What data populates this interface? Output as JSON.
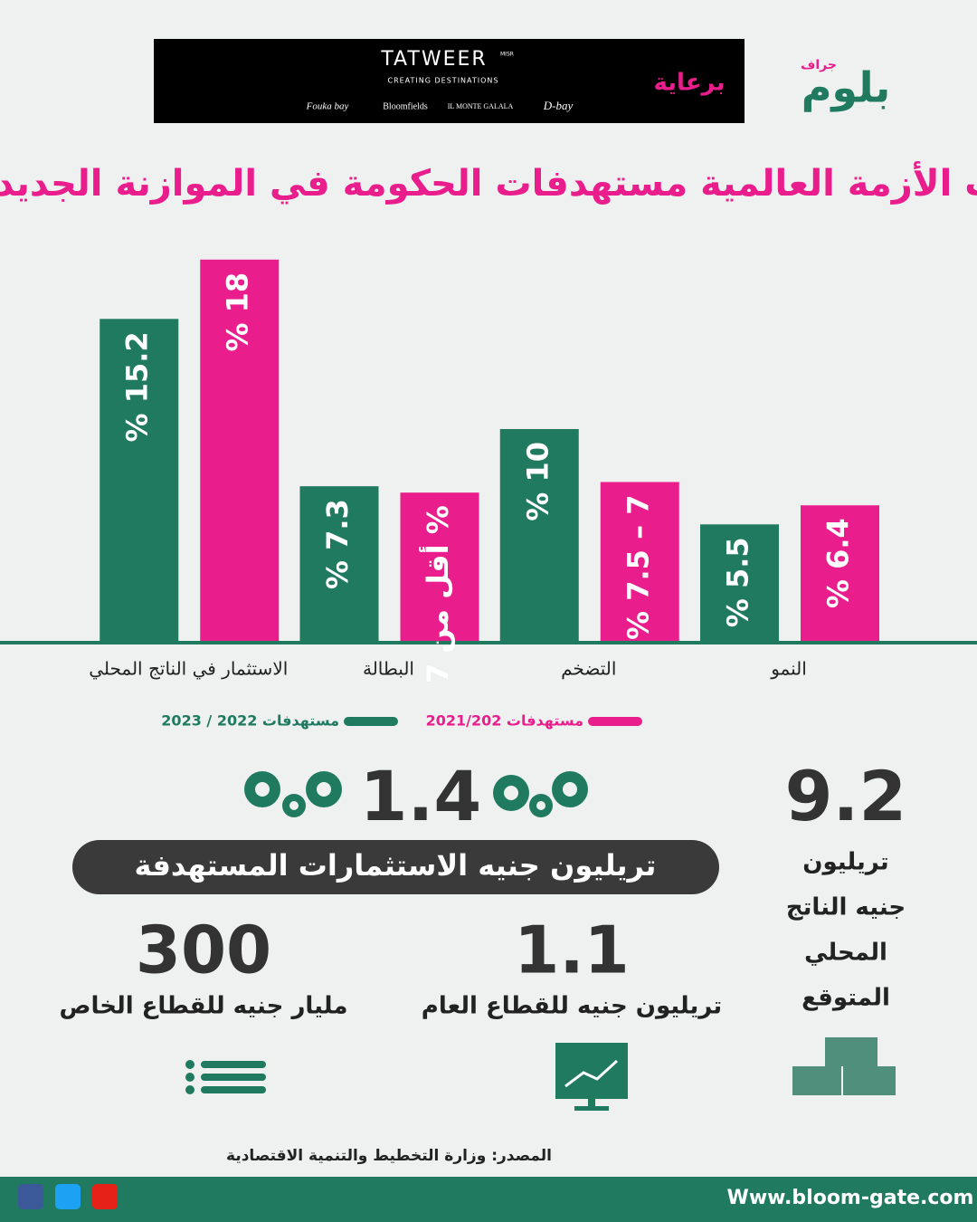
{
  "header": {
    "sponsor_label": "برعاية",
    "brand": "بلوم",
    "brand_tag": "جراف",
    "sponsor": "TATWEER",
    "sponsor_sub": "MISR",
    "sponsor_tagline": "CREATING DESTINATIONS",
    "partners": [
      "Fouka bay",
      "Bloomfields",
      "IL MONTE GALALA",
      "D-bay"
    ]
  },
  "chart_data": {
    "type": "bar",
    "title": "كيف غيرت الأزمة العالمية مستهدفات الحكومة في الموازنة الجديدة؟",
    "categories": [
      "النمو",
      "التضخم",
      "البطالة",
      "الاستثمار في الناتج المحلي"
    ],
    "series": [
      {
        "name": "مستهدفات 2021/202",
        "color": "#e91e8c",
        "values": [
          6.4,
          7.5,
          7,
          18
        ],
        "value_labels": [
          "% 6.4",
          "% 7.5 – 7",
          "أقل من 7 %",
          "% 18"
        ]
      },
      {
        "name": "مستهدفات 2022 / 2023",
        "color": "#1f7a60",
        "values": [
          5.5,
          10,
          7.3,
          15.2
        ],
        "value_labels": [
          "% 5.5",
          "% 10",
          "% 7.3",
          "% 15.2"
        ]
      }
    ],
    "ylim": [
      0,
      20
    ],
    "grid": false
  },
  "stats": {
    "gdp": {
      "value": "9.2",
      "label": [
        "تريليون",
        "جنيه الناتج",
        "المحلي",
        "المتوقع"
      ]
    },
    "investment": {
      "value": "1.4",
      "label": "تريليون جنيه الاستثمارات المستهدفة"
    },
    "public": {
      "value": "1.1",
      "label": "تريليون جنيه للقطاع العام"
    },
    "private": {
      "value": "300",
      "label": "مليار جنيه للقطاع الخاص"
    }
  },
  "source": "المصدر: وزارة التخطيط والتنمية الاقتصادية",
  "footer": {
    "website": "Www.bloom-gate.com"
  }
}
